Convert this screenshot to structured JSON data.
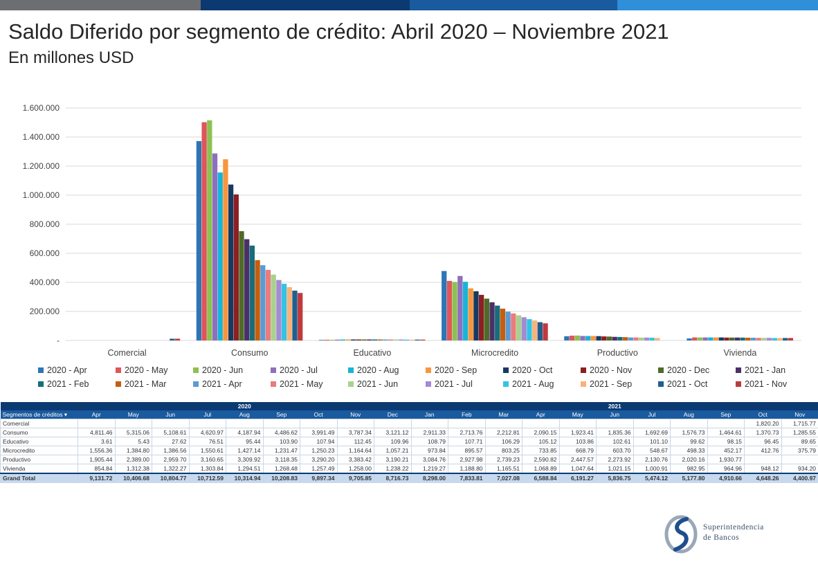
{
  "header": {
    "title": "Saldo Diferido por segmento de crédito: Abril 2020 – Noviembre 2021",
    "subtitle": "En millones USD",
    "bar_colors": [
      "#6d6e71",
      "#0b3a73",
      "#1a5a9e",
      "#2f8fd8"
    ]
  },
  "chart_data": {
    "type": "bar",
    "title": "Saldo Diferido por segmento de crédito: Abril 2020 – Noviembre 2021",
    "subtitle": "En millones USD",
    "ylim": [
      0,
      1600000
    ],
    "yticks": [
      "-",
      "200.000",
      "400.000",
      "600.000",
      "800.000",
      "1.000.000",
      "1.200.000",
      "1.400.000",
      "1.600.000"
    ],
    "grid": true,
    "legend_position": "bottom",
    "categories": [
      "Comercial",
      "Consumo",
      "Educativo",
      "Microcredito",
      "Productivo",
      "Vivienda"
    ],
    "series": [
      {
        "name": "2020 - Apr",
        "color": "#2e75b6",
        "values": [
          0,
          1372000,
          4000,
          478000,
          29000,
          14000
        ]
      },
      {
        "name": "2020 - May",
        "color": "#e05559",
        "values": [
          0,
          1502000,
          5000,
          410000,
          33000,
          21000
        ]
      },
      {
        "name": "2020 - Jun",
        "color": "#8cc152",
        "values": [
          0,
          1515000,
          5000,
          403000,
          34000,
          21000
        ]
      },
      {
        "name": "2020 - Jul",
        "color": "#8e6fbf",
        "values": [
          0,
          1287000,
          6000,
          444000,
          31000,
          21000
        ]
      },
      {
        "name": "2020 - Aug",
        "color": "#18b4d8",
        "values": [
          0,
          1156000,
          7000,
          404000,
          31000,
          21000
        ]
      },
      {
        "name": "2020 - Sep",
        "color": "#f7963e",
        "values": [
          0,
          1247000,
          7000,
          359000,
          31000,
          21000
        ]
      },
      {
        "name": "2020 - Oct",
        "color": "#173a63",
        "values": [
          0,
          1073000,
          7000,
          339000,
          30000,
          21000
        ]
      },
      {
        "name": "2020 - Nov",
        "color": "#8b1f22",
        "values": [
          0,
          1005000,
          7000,
          314000,
          28000,
          20000
        ]
      },
      {
        "name": "2020 - Dec",
        "color": "#4e6b28",
        "values": [
          0,
          752000,
          7000,
          288000,
          27000,
          20000
        ]
      },
      {
        "name": "2021 - Jan",
        "color": "#4a3069",
        "values": [
          0,
          697000,
          7000,
          263000,
          25000,
          20000
        ]
      },
      {
        "name": "2021 - Feb",
        "color": "#176d7a",
        "values": [
          0,
          653000,
          7000,
          240000,
          24000,
          20000
        ]
      },
      {
        "name": "2021 - Mar",
        "color": "#c65e0f",
        "values": [
          0,
          553000,
          7000,
          219000,
          23000,
          19000
        ]
      },
      {
        "name": "2021 - Apr",
        "color": "#5b9bd5",
        "values": [
          0,
          518000,
          7000,
          198000,
          21000,
          19000
        ]
      },
      {
        "name": "2021 - May",
        "color": "#e97c7c",
        "values": [
          0,
          486000,
          7000,
          186000,
          21000,
          18000
        ]
      },
      {
        "name": "2021 - Jun",
        "color": "#a9d18e",
        "values": [
          0,
          453000,
          7000,
          173000,
          20000,
          18000
        ]
      },
      {
        "name": "2021 - Jul",
        "color": "#a48ad3",
        "values": [
          0,
          416000,
          7000,
          160000,
          20000,
          18000
        ]
      },
      {
        "name": "2021 - Aug",
        "color": "#33c4e3",
        "values": [
          0,
          390000,
          6000,
          147000,
          19000,
          17000
        ]
      },
      {
        "name": "2021 - Sep",
        "color": "#f9b27a",
        "values": [
          0,
          367000,
          6000,
          138000,
          17000,
          17000
        ]
      },
      {
        "name": "2021 - Oct",
        "color": "#1f5f8f",
        "values": [
          12000,
          343000,
          6000,
          126000,
          0,
          17000
        ]
      },
      {
        "name": "2021 - Nov",
        "color": "#c0393d",
        "values": [
          12000,
          327000,
          6000,
          118000,
          0,
          17000
        ]
      }
    ]
  },
  "table": {
    "row_header": "Segmentos de créditos",
    "years": [
      "2020",
      "2021"
    ],
    "months": [
      "Apr",
      "May",
      "Jun",
      "Jul",
      "Aug",
      "Sep",
      "Oct",
      "Nov",
      "Dec",
      "Jan",
      "Feb",
      "Mar",
      "Apr",
      "May",
      "Jun",
      "Jul",
      "Aug",
      "Sep",
      "Oct",
      "Nov"
    ],
    "rows": [
      {
        "label": "Comercial",
        "values": [
          "",
          "",
          "",
          "",
          "",
          "",
          "",
          "",
          "",
          "",
          "",
          "",
          "",
          "",
          "",
          "",
          "",
          "",
          "1,820.20",
          "1,715.77"
        ]
      },
      {
        "label": "Consumo",
        "values": [
          "4,811.46",
          "5,315.06",
          "5,108.61",
          "4,620.97",
          "4,187.94",
          "4,486.62",
          "3,991.49",
          "3,787.34",
          "3,121.12",
          "2,911.33",
          "2,713.76",
          "2,212.81",
          "2,090.15",
          "1,923.41",
          "1,835.36",
          "1,692.69",
          "1,576.73",
          "1,464.61",
          "1,370.73",
          "1,285.55"
        ]
      },
      {
        "label": "Educativo",
        "values": [
          "3.61",
          "5.43",
          "27.62",
          "76.51",
          "95.44",
          "103.90",
          "107.94",
          "112.45",
          "109.96",
          "108.79",
          "107.71",
          "106.29",
          "105.12",
          "103.86",
          "102.61",
          "101.10",
          "99.62",
          "98.15",
          "96.45",
          "89.65"
        ]
      },
      {
        "label": "Microcredito",
        "values": [
          "1,556.36",
          "1,384.80",
          "1,386.56",
          "1,550.61",
          "1,427.14",
          "1,231.47",
          "1,250.23",
          "1,164.64",
          "1,057.21",
          "973.84",
          "895.57",
          "803.25",
          "733.85",
          "668.79",
          "603.70",
          "548.67",
          "498.33",
          "452.17",
          "412.76",
          "375.79"
        ]
      },
      {
        "label": "Productivo",
        "values": [
          "1,905.44",
          "2,389.00",
          "2,959.70",
          "3,160.65",
          "3,309.92",
          "3,118.35",
          "3,290.20",
          "3,383.42",
          "3,190.21",
          "3,084.76",
          "2,927.98",
          "2,739.23",
          "2,590.82",
          "2,447.57",
          "2,273.92",
          "2,130.76",
          "2,020.16",
          "1,930.77",
          "",
          ""
        ]
      },
      {
        "label": "Vivienda",
        "values": [
          "854.84",
          "1,312.38",
          "1,322.27",
          "1,303.84",
          "1,294.51",
          "1,268.48",
          "1,257.49",
          "1,258.00",
          "1,238.22",
          "1,219.27",
          "1,188.80",
          "1,165.51",
          "1,068.89",
          "1,047.64",
          "1,021.15",
          "1,000.91",
          "982.95",
          "964.96",
          "948.12",
          "934.20"
        ]
      }
    ],
    "total": {
      "label": "Grand Total",
      "values": [
        "9,131.72",
        "10,406.68",
        "10,804.77",
        "10,712.59",
        "10,314.94",
        "10,208.83",
        "9,897.34",
        "9,705.85",
        "8,716.73",
        "8,298.00",
        "7,833.81",
        "7,027.08",
        "6,588.84",
        "6,191.27",
        "5,836.75",
        "5,474.12",
        "5,177.80",
        "4,910.66",
        "4,648.26",
        "4,400.97"
      ]
    }
  },
  "logo": {
    "line1": "Superintendencia",
    "line2": "de Bancos"
  }
}
